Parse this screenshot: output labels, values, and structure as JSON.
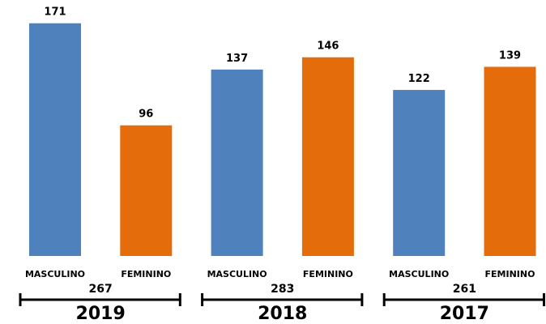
{
  "chart_data": {
    "type": "bar",
    "categories": [
      "MASCULINO",
      "FEMININO",
      "MASCULINO",
      "FEMININO",
      "MASCULINO",
      "FEMININO"
    ],
    "values": [
      171,
      96,
      137,
      146,
      122,
      139
    ],
    "colors": [
      "#4f81bd",
      "#e46c0a",
      "#4f81bd",
      "#e46c0a",
      "#4f81bd",
      "#e46c0a"
    ],
    "groups": [
      {
        "label": "2019",
        "total": 267
      },
      {
        "label": "2018",
        "total": 283
      },
      {
        "label": "2017",
        "total": 261
      }
    ]
  }
}
